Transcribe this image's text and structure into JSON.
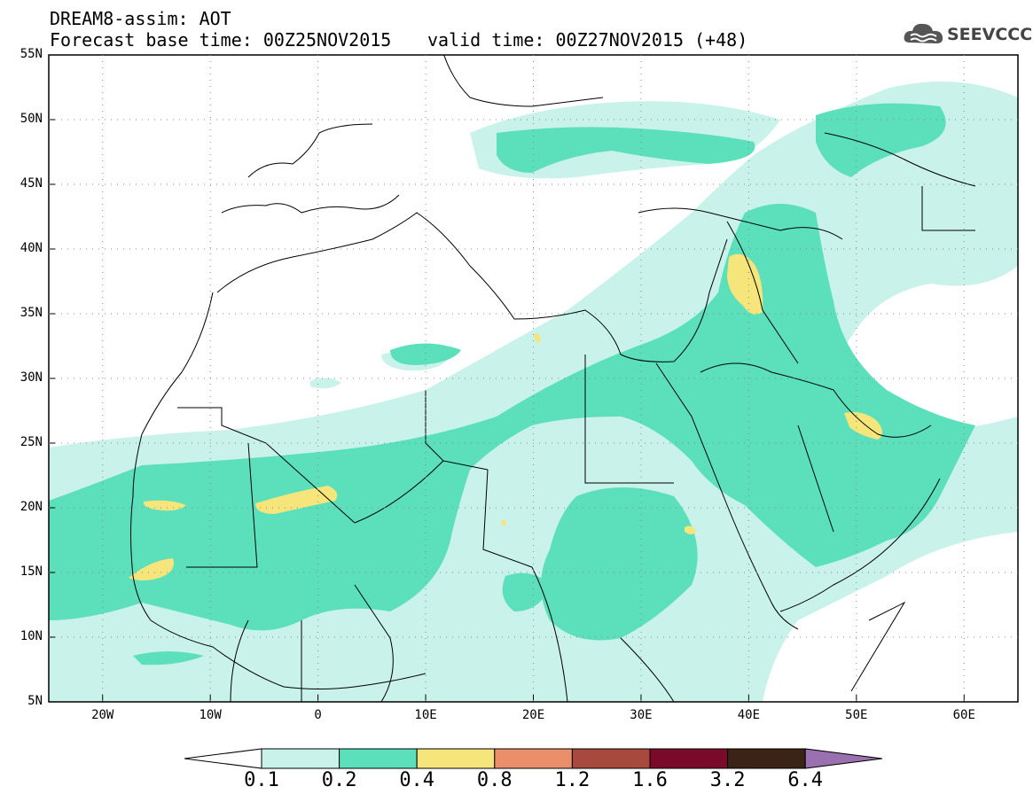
{
  "header": {
    "title_line1": "DREAM8-assim: AOT",
    "base_time": "Forecast base time: 00Z25NOV2015",
    "valid_time": "valid time: 00Z27NOV2015 (+48)"
  },
  "logo": {
    "text": "SEEVCCC",
    "icon": "cloud-icon"
  },
  "map": {
    "lon_labels": [
      "20W",
      "10W",
      "0",
      "10E",
      "20E",
      "30E",
      "40E",
      "50E",
      "60E"
    ],
    "lat_labels": [
      "55N",
      "50N",
      "45N",
      "40N",
      "35N",
      "30N",
      "25N",
      "20N",
      "15N",
      "10N",
      "5N"
    ],
    "extent": {
      "lon_min": -25,
      "lon_max": 65,
      "lat_min": 5,
      "lat_max": 55
    }
  },
  "colorbar": {
    "levels": [
      "0.1",
      "0.2",
      "0.4",
      "0.8",
      "1.2",
      "1.6",
      "3.2",
      "6.4"
    ],
    "colors": [
      "#c9f2ea",
      "#5be0bb",
      "#f5e57a",
      "#ea8f6a",
      "#a8493e",
      "#7a0a2a",
      "#3b2416",
      "#9a70b0"
    ]
  }
}
